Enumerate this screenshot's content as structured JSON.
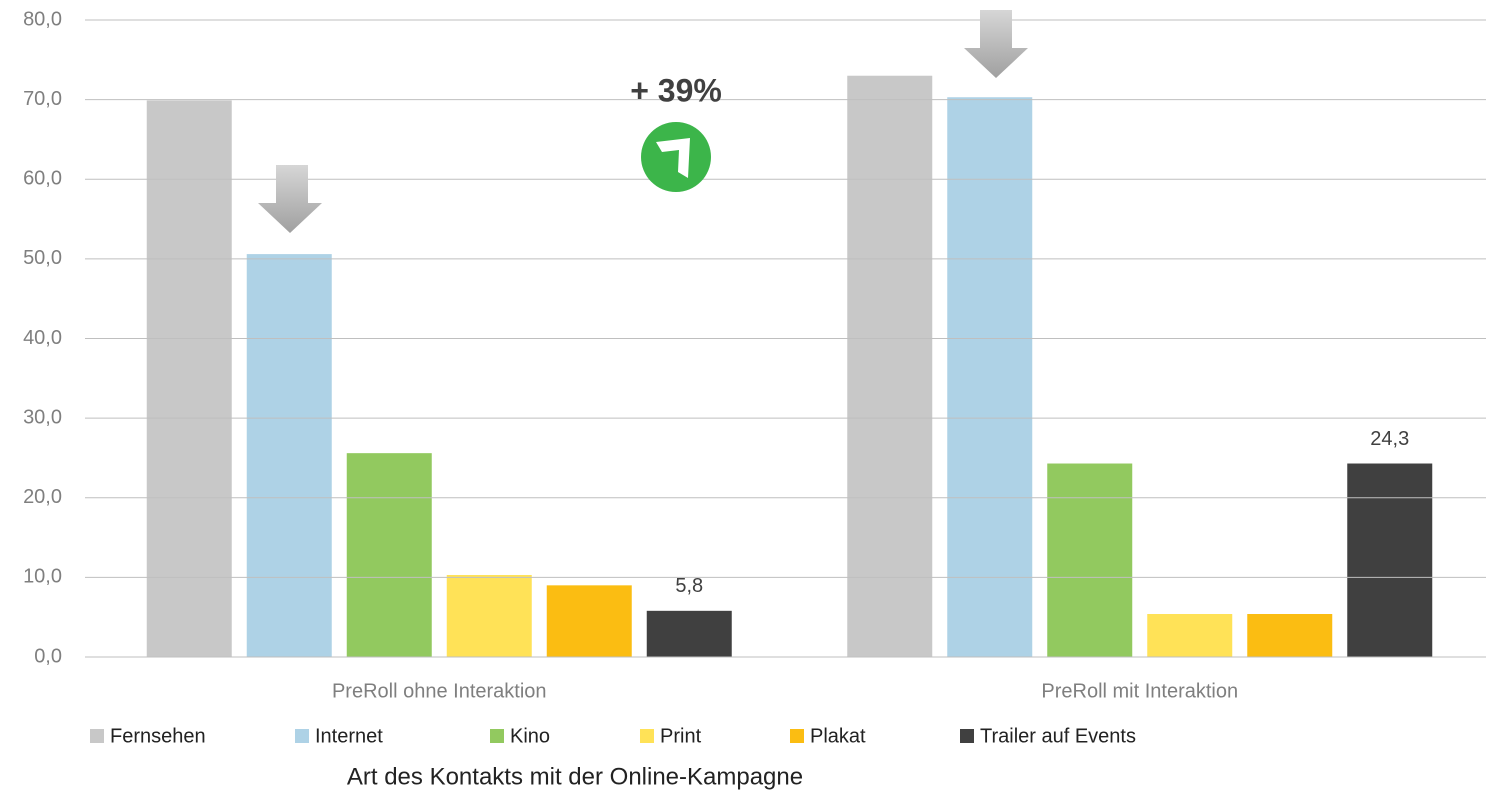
{
  "chart_data": {
    "type": "bar",
    "categories": [
      "PreRoll ohne Interaktion",
      "PreRoll mit Interaktion"
    ],
    "series": [
      {
        "name": "Fernsehen",
        "color": "#c8c8c8",
        "values": [
          69.9,
          73.0
        ],
        "value_labels": [
          "69,9",
          "73,0"
        ]
      },
      {
        "name": "Internet",
        "color": "#aed2e6",
        "values": [
          50.6,
          70.3
        ],
        "value_labels": [
          "50,6",
          "70,3"
        ]
      },
      {
        "name": "Kino",
        "color": "#92c95f",
        "values": [
          25.6,
          24.3
        ],
        "value_labels": [
          "25,6",
          "24,3"
        ]
      },
      {
        "name": "Print",
        "color": "#ffe257",
        "values": [
          10.3,
          5.4
        ],
        "value_labels": [
          "10,3",
          "5,4"
        ]
      },
      {
        "name": "Plakat",
        "color": "#fbbd12",
        "values": [
          9.0,
          5.4
        ],
        "value_labels": [
          "9,0",
          "5,4"
        ]
      },
      {
        "name": "Trailer auf Events",
        "color": "#404040",
        "values": [
          5.8,
          24.3
        ],
        "value_labels": [
          "5,8",
          "24,3"
        ]
      }
    ],
    "ylim": [
      0,
      80
    ],
    "yticks": [
      {
        "value": 0,
        "label": "0,0"
      },
      {
        "value": 10,
        "label": "10,0"
      },
      {
        "value": 20,
        "label": "20,0"
      },
      {
        "value": 30,
        "label": "30,0"
      },
      {
        "value": 40,
        "label": "40,0"
      },
      {
        "value": 50,
        "label": "50,0"
      },
      {
        "value": 60,
        "label": "60,0"
      },
      {
        "value": 70,
        "label": "70,0"
      },
      {
        "value": 80,
        "label": "80,0"
      }
    ],
    "grid": true,
    "annotation": "+ 39%",
    "xlabel": "Art des Kontakts mit der Online-Kampagne",
    "legend": "bottom"
  }
}
